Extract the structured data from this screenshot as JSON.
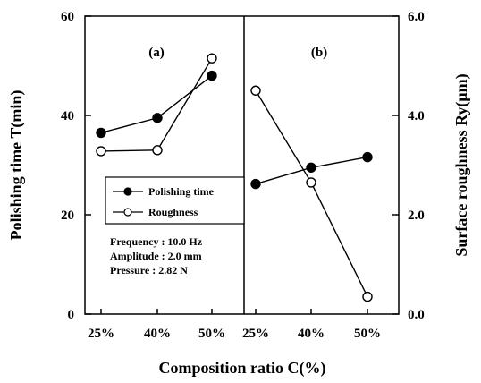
{
  "chart_data": {
    "type": "line",
    "panels": [
      {
        "label": "(a)",
        "categories": [
          "25%",
          "40%",
          "50%"
        ]
      },
      {
        "label": "(b)",
        "categories": [
          "25%",
          "40%",
          "50%"
        ]
      }
    ],
    "xlabel": "Composition ratio  C(%)",
    "ylabel_left": "Polishing time  T(min)",
    "ylabel_right": "Surface roughness  Ry(μm)",
    "ylim_left": [
      0,
      60
    ],
    "ylim_right": [
      0,
      6
    ],
    "yticks_left": [
      {
        "value": 0,
        "label": "0"
      },
      {
        "value": 20,
        "label": "20"
      },
      {
        "value": 40,
        "label": "40"
      },
      {
        "value": 60,
        "label": "60"
      }
    ],
    "yticks_right": [
      {
        "value": 0,
        "label": "0.0"
      },
      {
        "value": 2,
        "label": "2.0"
      },
      {
        "value": 4,
        "label": "4.0"
      },
      {
        "value": 6,
        "label": "6.0"
      }
    ],
    "series": [
      {
        "name": "Polishing time",
        "marker": "filled-circle",
        "axis": "left",
        "panel_values": [
          [
            36.5,
            39.5,
            48
          ],
          [
            26.2,
            29.5,
            31.6
          ]
        ]
      },
      {
        "name": "Roughness",
        "marker": "open-circle",
        "axis": "right",
        "panel_values": [
          [
            3.28,
            3.3,
            5.15
          ],
          [
            4.5,
            2.65,
            0.35
          ]
        ]
      }
    ],
    "conditions": [
      "Frequency : 10.0 Hz",
      "Amplitude : 2.0 mm",
      "Pressure : 2.82 N"
    ],
    "grid": false,
    "legend_position": "center-left"
  }
}
